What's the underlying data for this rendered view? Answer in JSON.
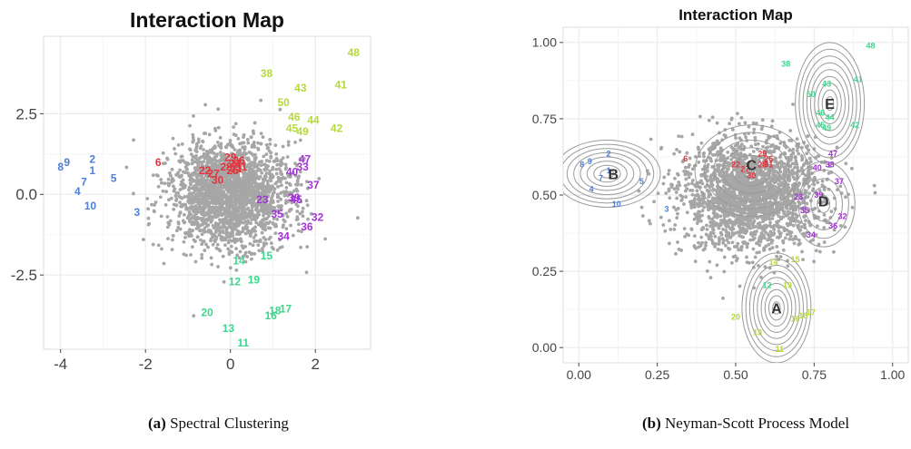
{
  "figure": {
    "caption_a": {
      "tag": "(a)",
      "text": " Spectral Clustering"
    },
    "caption_b": {
      "tag": "(b)",
      "text": " Neyman-Scott Process Model"
    }
  },
  "colors": {
    "background_point": "#a6a6a6",
    "grid": "#ebebeb",
    "panel_border": "#dddddd",
    "contour": "#9a9a9a",
    "cluster_blue": "#4f7ed6",
    "cluster_red": "#e0343c",
    "cluster_purple": "#a233d6",
    "cluster_green": "#3dd68c",
    "cluster_lime": "#b5d83a"
  },
  "chart_data": [
    {
      "type": "scatter",
      "title": "Interaction Map",
      "xlabel": "",
      "ylabel": "",
      "xlim": [
        -4.4,
        3.3
      ],
      "ylim": [
        -4.8,
        4.9
      ],
      "xticks": [
        -4,
        -2,
        0,
        2
      ],
      "yticks": [
        -2.5,
        0.0,
        2.5
      ],
      "ytick_labels": [
        "-2.5",
        "0.0",
        "2.5"
      ],
      "grid": true,
      "background_cloud": {
        "description_points": "approx. 2000 grey points",
        "center": [
          0.0,
          0.0
        ],
        "sd": [
          0.7,
          0.8
        ]
      },
      "labels": [
        {
          "t": "1",
          "x": -3.25,
          "y": 0.75,
          "c": "cluster_blue"
        },
        {
          "t": "2",
          "x": -3.25,
          "y": 1.1,
          "c": "cluster_blue"
        },
        {
          "t": "3",
          "x": -2.2,
          "y": -0.55,
          "c": "cluster_blue"
        },
        {
          "t": "4",
          "x": -3.6,
          "y": 0.1,
          "c": "cluster_blue"
        },
        {
          "t": "5",
          "x": -2.75,
          "y": 0.5,
          "c": "cluster_blue"
        },
        {
          "t": "7",
          "x": -3.45,
          "y": 0.4,
          "c": "cluster_blue"
        },
        {
          "t": "8",
          "x": -4.0,
          "y": 0.85,
          "c": "cluster_blue"
        },
        {
          "t": "9",
          "x": -3.85,
          "y": 1.0,
          "c": "cluster_blue"
        },
        {
          "t": "10",
          "x": -3.3,
          "y": -0.35,
          "c": "cluster_blue"
        },
        {
          "t": "6",
          "x": -1.7,
          "y": 1.0,
          "c": "cluster_red"
        },
        {
          "t": "22",
          "x": -0.6,
          "y": 0.75,
          "c": "cluster_red"
        },
        {
          "t": "27",
          "x": -0.4,
          "y": 0.65,
          "c": "cluster_red"
        },
        {
          "t": "30",
          "x": -0.3,
          "y": 0.45,
          "c": "cluster_red"
        },
        {
          "t": "28",
          "x": -0.1,
          "y": 0.85,
          "c": "cluster_red"
        },
        {
          "t": "29",
          "x": 0.0,
          "y": 1.15,
          "c": "cluster_red"
        },
        {
          "t": "24",
          "x": 0.1,
          "y": 0.95,
          "c": "cluster_red"
        },
        {
          "t": "25",
          "x": 0.05,
          "y": 0.75,
          "c": "cluster_red"
        },
        {
          "t": "26",
          "x": 0.2,
          "y": 1.05,
          "c": "cluster_red"
        },
        {
          "t": "21",
          "x": 0.15,
          "y": 0.8,
          "c": "cluster_red"
        },
        {
          "t": "31",
          "x": 0.25,
          "y": 0.85,
          "c": "cluster_red"
        },
        {
          "t": "23",
          "x": 0.75,
          "y": -0.15,
          "c": "cluster_purple"
        },
        {
          "t": "32",
          "x": 2.05,
          "y": -0.7,
          "c": "cluster_purple"
        },
        {
          "t": "33",
          "x": 1.7,
          "y": 0.85,
          "c": "cluster_purple"
        },
        {
          "t": "34",
          "x": 1.25,
          "y": -1.3,
          "c": "cluster_purple"
        },
        {
          "t": "35",
          "x": 1.1,
          "y": -0.6,
          "c": "cluster_purple"
        },
        {
          "t": "36",
          "x": 1.8,
          "y": -1.0,
          "c": "cluster_purple"
        },
        {
          "t": "37",
          "x": 1.95,
          "y": 0.3,
          "c": "cluster_purple"
        },
        {
          "t": "39",
          "x": 1.5,
          "y": -0.1,
          "c": "cluster_purple"
        },
        {
          "t": "40",
          "x": 1.45,
          "y": 0.7,
          "c": "cluster_purple"
        },
        {
          "t": "45",
          "x": 1.55,
          "y": -0.15,
          "c": "cluster_purple"
        },
        {
          "t": "47",
          "x": 1.75,
          "y": 1.1,
          "c": "cluster_purple"
        },
        {
          "t": "11",
          "x": 0.3,
          "y": -4.6,
          "c": "cluster_green"
        },
        {
          "t": "12",
          "x": 0.1,
          "y": -2.7,
          "c": "cluster_green"
        },
        {
          "t": "13",
          "x": -0.05,
          "y": -4.15,
          "c": "cluster_green"
        },
        {
          "t": "14",
          "x": 0.2,
          "y": -2.05,
          "c": "cluster_green"
        },
        {
          "t": "15",
          "x": 0.85,
          "y": -1.9,
          "c": "cluster_green"
        },
        {
          "t": "16",
          "x": 0.95,
          "y": -3.75,
          "c": "cluster_green"
        },
        {
          "t": "17",
          "x": 1.3,
          "y": -3.55,
          "c": "cluster_green"
        },
        {
          "t": "18",
          "x": 1.05,
          "y": -3.6,
          "c": "cluster_green"
        },
        {
          "t": "19",
          "x": 0.55,
          "y": -2.65,
          "c": "cluster_green"
        },
        {
          "t": "20",
          "x": -0.55,
          "y": -3.65,
          "c": "cluster_green"
        },
        {
          "t": "38",
          "x": 0.85,
          "y": 3.75,
          "c": "cluster_lime"
        },
        {
          "t": "41",
          "x": 2.6,
          "y": 3.4,
          "c": "cluster_lime"
        },
        {
          "t": "42",
          "x": 2.5,
          "y": 2.05,
          "c": "cluster_lime"
        },
        {
          "t": "43",
          "x": 1.65,
          "y": 3.3,
          "c": "cluster_lime"
        },
        {
          "t": "44",
          "x": 1.95,
          "y": 2.3,
          "c": "cluster_lime"
        },
        {
          "t": "46",
          "x": 1.5,
          "y": 2.4,
          "c": "cluster_lime"
        },
        {
          "t": "48",
          "x": 2.9,
          "y": 4.4,
          "c": "cluster_lime"
        },
        {
          "t": "49",
          "x": 1.7,
          "y": 1.95,
          "c": "cluster_lime"
        },
        {
          "t": "50",
          "x": 1.25,
          "y": 2.85,
          "c": "cluster_lime"
        },
        {
          "t": "45",
          "x": 1.45,
          "y": 2.05,
          "c": "cluster_lime"
        }
      ]
    },
    {
      "type": "scatter",
      "title": "Interaction Map",
      "xlabel": "",
      "ylabel": "",
      "xlim": [
        -0.05,
        1.05
      ],
      "ylim": [
        -0.05,
        1.05
      ],
      "xticks": [
        0.0,
        0.25,
        0.5,
        0.75,
        1.0
      ],
      "xtick_labels": [
        "0.00",
        "0.25",
        "0.50",
        "0.75",
        "1.00"
      ],
      "yticks": [
        0.0,
        0.25,
        0.5,
        0.75,
        1.0
      ],
      "ytick_labels": [
        "0.00",
        "0.25",
        "0.50",
        "0.75",
        "1.00"
      ],
      "grid": true,
      "background_cloud": {
        "center": [
          0.55,
          0.5
        ],
        "sd": [
          0.11,
          0.09
        ]
      },
      "cluster_centers": [
        {
          "t": "A",
          "x": 0.63,
          "y": 0.13
        },
        {
          "t": "B",
          "x": 0.11,
          "y": 0.57
        },
        {
          "t": "C",
          "x": 0.55,
          "y": 0.6
        },
        {
          "t": "D",
          "x": 0.78,
          "y": 0.48
        },
        {
          "t": "E",
          "x": 0.8,
          "y": 0.8
        }
      ],
      "contours": [
        {
          "cx": 0.09,
          "cy": 0.57,
          "rx": 0.17,
          "ry": 0.11,
          "n": 8
        },
        {
          "cx": 0.63,
          "cy": 0.13,
          "rx": 0.11,
          "ry": 0.18,
          "n": 9
        },
        {
          "cx": 0.55,
          "cy": 0.58,
          "rx": 0.18,
          "ry": 0.15,
          "n": 6
        },
        {
          "cx": 0.8,
          "cy": 0.8,
          "rx": 0.11,
          "ry": 0.2,
          "n": 9
        },
        {
          "cx": 0.78,
          "cy": 0.47,
          "rx": 0.1,
          "ry": 0.14,
          "n": 5
        }
      ],
      "labels": [
        {
          "t": "1",
          "x": 0.095,
          "y": 0.58,
          "c": "cluster_blue"
        },
        {
          "t": "2",
          "x": 0.095,
          "y": 0.635,
          "c": "cluster_blue"
        },
        {
          "t": "3",
          "x": 0.28,
          "y": 0.455,
          "c": "cluster_blue"
        },
        {
          "t": "4",
          "x": 0.04,
          "y": 0.52,
          "c": "cluster_blue"
        },
        {
          "t": "5",
          "x": 0.2,
          "y": 0.545,
          "c": "cluster_blue"
        },
        {
          "t": "7",
          "x": 0.07,
          "y": 0.555,
          "c": "cluster_blue"
        },
        {
          "t": "8",
          "x": 0.01,
          "y": 0.6,
          "c": "cluster_blue"
        },
        {
          "t": "9",
          "x": 0.035,
          "y": 0.61,
          "c": "cluster_blue"
        },
        {
          "t": "10",
          "x": 0.12,
          "y": 0.47,
          "c": "cluster_blue"
        },
        {
          "t": "6",
          "x": 0.34,
          "y": 0.62,
          "c": "cluster_red"
        },
        {
          "t": "22",
          "x": 0.5,
          "y": 0.6,
          "c": "cluster_red"
        },
        {
          "t": "27",
          "x": 0.53,
          "y": 0.585,
          "c": "cluster_red"
        },
        {
          "t": "30",
          "x": 0.55,
          "y": 0.565,
          "c": "cluster_red"
        },
        {
          "t": "28",
          "x": 0.585,
          "y": 0.6,
          "c": "cluster_red"
        },
        {
          "t": "29",
          "x": 0.585,
          "y": 0.635,
          "c": "cluster_red"
        },
        {
          "t": "26",
          "x": 0.605,
          "y": 0.62,
          "c": "cluster_red"
        },
        {
          "t": "31",
          "x": 0.605,
          "y": 0.6,
          "c": "cluster_red"
        },
        {
          "t": "23",
          "x": 0.7,
          "y": 0.495,
          "c": "cluster_purple"
        },
        {
          "t": "32",
          "x": 0.84,
          "y": 0.43,
          "c": "cluster_purple"
        },
        {
          "t": "33",
          "x": 0.8,
          "y": 0.6,
          "c": "cluster_purple"
        },
        {
          "t": "34",
          "x": 0.74,
          "y": 0.37,
          "c": "cluster_purple"
        },
        {
          "t": "35",
          "x": 0.72,
          "y": 0.45,
          "c": "cluster_purple"
        },
        {
          "t": "36",
          "x": 0.81,
          "y": 0.4,
          "c": "cluster_purple"
        },
        {
          "t": "37",
          "x": 0.83,
          "y": 0.545,
          "c": "cluster_purple"
        },
        {
          "t": "39",
          "x": 0.765,
          "y": 0.5,
          "c": "cluster_purple"
        },
        {
          "t": "40",
          "x": 0.76,
          "y": 0.59,
          "c": "cluster_purple"
        },
        {
          "t": "47",
          "x": 0.81,
          "y": 0.635,
          "c": "cluster_purple"
        },
        {
          "t": "11",
          "x": 0.64,
          "y": -0.005,
          "c": "cluster_lime"
        },
        {
          "t": "12",
          "x": 0.6,
          "y": 0.205,
          "c": "cluster_green"
        },
        {
          "t": "13",
          "x": 0.57,
          "y": 0.05,
          "c": "cluster_lime"
        },
        {
          "t": "14",
          "x": 0.62,
          "y": 0.28,
          "c": "cluster_lime"
        },
        {
          "t": "15",
          "x": 0.69,
          "y": 0.29,
          "c": "cluster_lime"
        },
        {
          "t": "16",
          "x": 0.69,
          "y": 0.095,
          "c": "cluster_lime"
        },
        {
          "t": "17",
          "x": 0.74,
          "y": 0.115,
          "c": "cluster_lime"
        },
        {
          "t": "18",
          "x": 0.715,
          "y": 0.105,
          "c": "cluster_lime"
        },
        {
          "t": "19",
          "x": 0.665,
          "y": 0.205,
          "c": "cluster_lime"
        },
        {
          "t": "20",
          "x": 0.5,
          "y": 0.1,
          "c": "cluster_lime"
        },
        {
          "t": "38",
          "x": 0.66,
          "y": 0.93,
          "c": "cluster_green"
        },
        {
          "t": "41",
          "x": 0.89,
          "y": 0.88,
          "c": "cluster_green"
        },
        {
          "t": "42",
          "x": 0.88,
          "y": 0.73,
          "c": "cluster_green"
        },
        {
          "t": "43",
          "x": 0.79,
          "y": 0.865,
          "c": "cluster_green"
        },
        {
          "t": "44",
          "x": 0.8,
          "y": 0.755,
          "c": "cluster_green"
        },
        {
          "t": "46",
          "x": 0.77,
          "y": 0.77,
          "c": "cluster_green"
        },
        {
          "t": "48",
          "x": 0.93,
          "y": 0.99,
          "c": "cluster_green"
        },
        {
          "t": "49",
          "x": 0.79,
          "y": 0.72,
          "c": "cluster_green"
        },
        {
          "t": "50",
          "x": 0.74,
          "y": 0.83,
          "c": "cluster_green"
        },
        {
          "t": "45",
          "x": 0.77,
          "y": 0.73,
          "c": "cluster_green"
        }
      ]
    }
  ]
}
